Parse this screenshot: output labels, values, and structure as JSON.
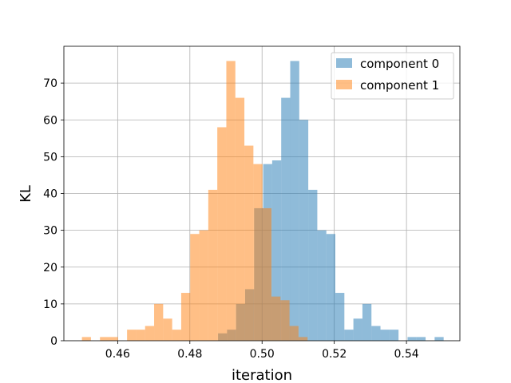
{
  "chart_data": {
    "type": "histogram",
    "xlabel": "iteration",
    "ylabel": "KL",
    "xlim": [
      0.4451,
      0.5548
    ],
    "ylim": [
      0,
      80
    ],
    "xticks": [
      0.46,
      0.48,
      0.5,
      0.52,
      0.54
    ],
    "xtick_labels": [
      "0.46",
      "0.48",
      "0.50",
      "0.52",
      "0.54"
    ],
    "yticks": [
      0,
      10,
      20,
      30,
      40,
      50,
      60,
      70
    ],
    "ytick_labels": [
      "0",
      "10",
      "20",
      "30",
      "40",
      "50",
      "60",
      "70"
    ],
    "grid": true,
    "legend_position": "top-right",
    "alpha": 0.5,
    "series": [
      {
        "name": "component 0",
        "color": "#1f77b4",
        "bin_start": 0.4878,
        "bin_width": 0.0025,
        "counts": [
          2,
          3,
          10,
          14,
          36,
          48,
          49,
          66,
          76,
          60,
          41,
          30,
          29,
          13,
          3,
          6,
          10,
          4,
          3,
          3,
          0,
          1,
          1,
          0,
          1
        ]
      },
      {
        "name": "component 1",
        "color": "#ff7f0e",
        "bin_start": 0.4501,
        "bin_width": 0.0025,
        "counts": [
          1,
          0,
          1,
          1,
          0,
          3,
          3,
          4,
          10,
          6,
          3,
          13,
          29,
          30,
          41,
          58,
          76,
          66,
          53,
          48,
          36,
          12,
          11,
          4,
          1
        ]
      }
    ]
  }
}
